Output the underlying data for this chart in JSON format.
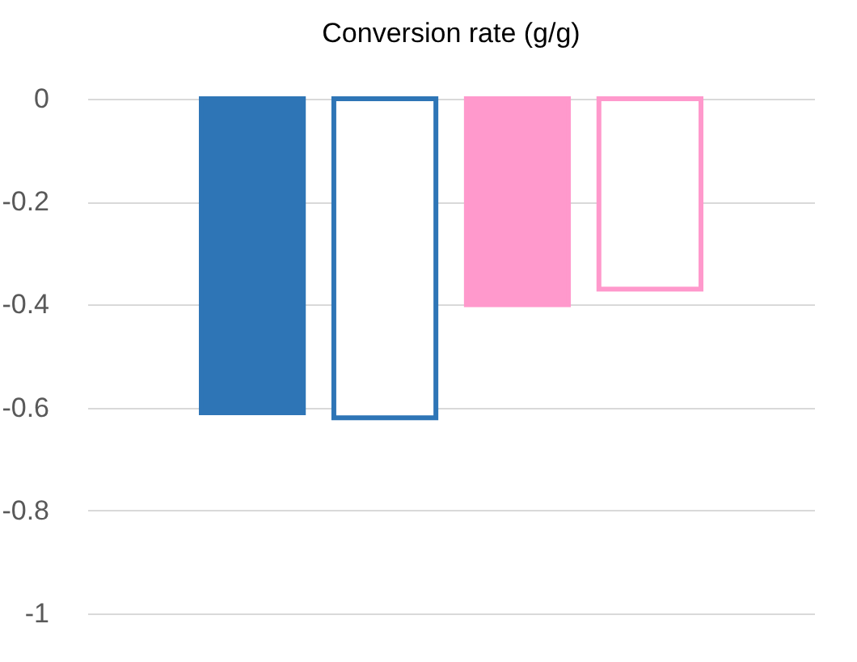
{
  "chart_data": {
    "type": "bar",
    "title": "Conversion rate (g/g)",
    "categories": [
      null,
      null,
      null,
      null
    ],
    "values": [
      -0.61,
      -0.62,
      -0.4,
      -0.37
    ],
    "colors": [
      "#2e75b6",
      "#2e75b6",
      "#ff99cc",
      "#ff99cc"
    ],
    "ylim": [
      -1,
      0
    ],
    "yticks": [
      {
        "value": 0,
        "label": "0"
      },
      {
        "value": -0.2,
        "label": "-0.2"
      },
      {
        "value": -0.4,
        "label": "-0.4"
      },
      {
        "value": -0.6,
        "label": "-0.6"
      },
      {
        "value": -0.8,
        "label": "-0.8"
      },
      {
        "value": -1,
        "label": "-1"
      }
    ],
    "grid": "y"
  }
}
